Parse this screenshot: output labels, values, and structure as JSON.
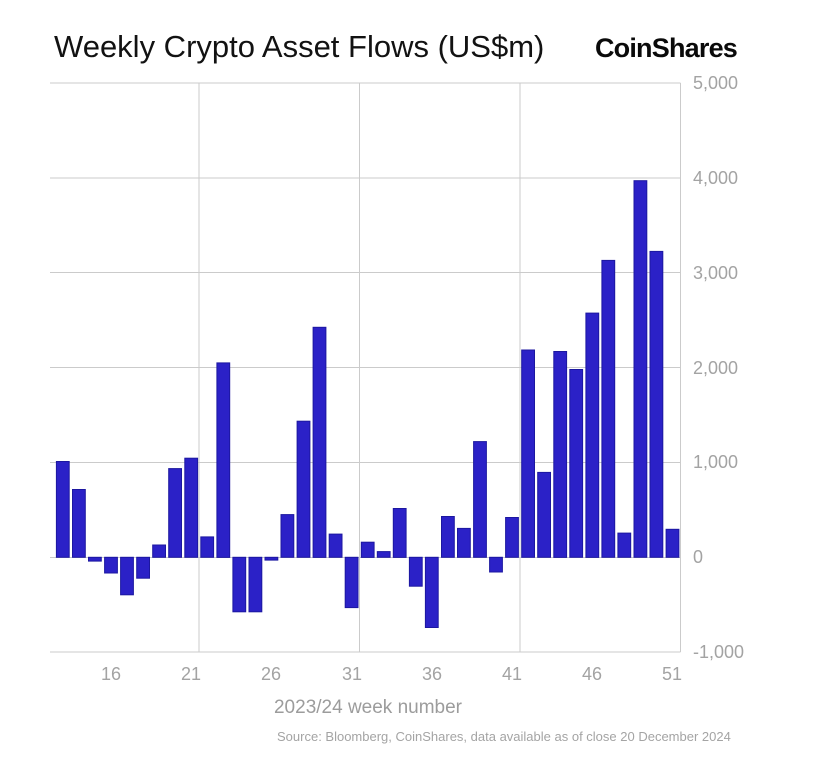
{
  "header": {
    "title": "Weekly Crypto Asset Flows (US$m)",
    "logo": "CoinShares"
  },
  "footer": {
    "source": "Source: Bloomberg, CoinShares, data available as of close 20 December 2024"
  },
  "chart_data": {
    "type": "bar",
    "title": "Weekly Crypto Asset Flows (US$m)",
    "xlabel": "2023/24 week number",
    "ylabel": "",
    "x": [
      13,
      14,
      15,
      16,
      17,
      18,
      19,
      20,
      21,
      22,
      23,
      24,
      25,
      26,
      27,
      28,
      29,
      30,
      31,
      32,
      33,
      34,
      35,
      36,
      37,
      38,
      39,
      40,
      41,
      42,
      43,
      44,
      45,
      46,
      47,
      48,
      49,
      50,
      51
    ],
    "values": [
      1010,
      715,
      -40,
      -165,
      -395,
      -220,
      130,
      935,
      1045,
      215,
      2050,
      -575,
      -575,
      -30,
      450,
      1435,
      2425,
      245,
      -530,
      160,
      60,
      515,
      -305,
      -740,
      430,
      305,
      1220,
      -155,
      420,
      2185,
      895,
      2170,
      1980,
      2575,
      3130,
      255,
      3970,
      3225,
      295
    ],
    "xticks": [
      16,
      21,
      26,
      31,
      36,
      41,
      46,
      51
    ],
    "yticks": [
      5000,
      4000,
      3000,
      2000,
      1000,
      0,
      -1000
    ],
    "ytick_labels": [
      "5,000",
      "4,000",
      "3,000",
      "2,000",
      "1,000",
      "0",
      "-1,000"
    ],
    "ylim": [
      -1000,
      5000
    ],
    "xlim": [
      12.2,
      51.5
    ],
    "vgrid_weeks": [
      21.5,
      31.5,
      41.5,
      51.5
    ],
    "grid": true,
    "legend": "none",
    "bar_color": "#2b21c7",
    "bar_border": "#1c17a0",
    "grid_color": "#cbcbcb",
    "tick_color": "#a3a3a3"
  }
}
